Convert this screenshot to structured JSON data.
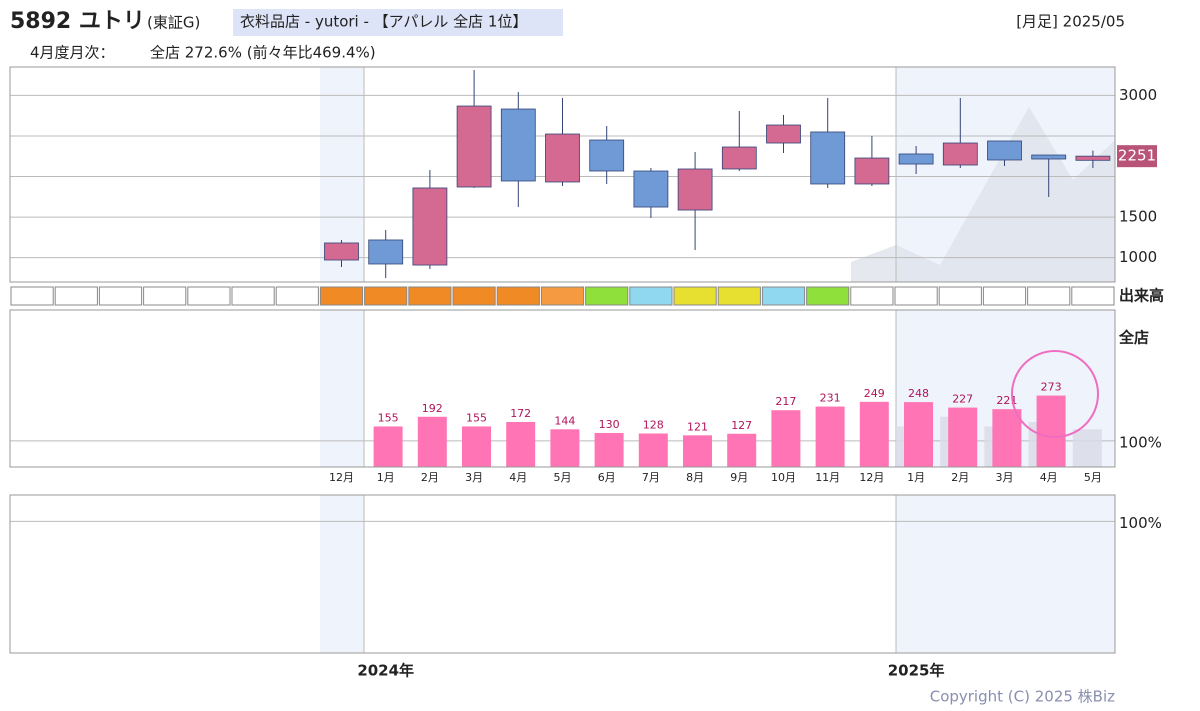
{
  "header": {
    "code_name": "5892 ユトリ",
    "market": "(東証G)",
    "sector": "衣料品店 - yutori - 【アパレル 全店 1位】",
    "period": "[月足] 2025/05",
    "monthly_label": "4月度月次：",
    "monthly_value": "全店 272.6% (前々年比469.4%)"
  },
  "chart_data": [
    {
      "type": "candlestick",
      "up_color": "#d46a92",
      "down_color": "#6f9ad6",
      "open": [
        971,
        1218,
        909,
        1871,
        2832,
        1933,
        2450,
        2068,
        1587,
        2093,
        2413,
        2549,
        1908,
        2278,
        2142,
        2438,
        2265,
        2200
      ],
      "high": [
        1218,
        1341,
        2080,
        3313,
        3042,
        2968,
        2623,
        2105,
        2302,
        2808,
        2758,
        2968,
        2499,
        2376,
        2968,
        2438,
        2265,
        2320
      ],
      "low": [
        885,
        749,
        860,
        1860,
        1624,
        1883,
        1908,
        1489,
        1094,
        2068,
        2290,
        1859,
        1883,
        2031,
        2105,
        2130,
        1748,
        2105
      ],
      "close": [
        1181,
        922,
        1859,
        2869,
        1945,
        2524,
        2068,
        1624,
        2093,
        2364,
        2635,
        1908,
        2228,
        2154,
        2413,
        2204,
        2216,
        2251
      ],
      "last_price": 2251,
      "ylim": [
        700,
        3350
      ],
      "yticks": [
        1000,
        1500,
        3000
      ],
      "ygrid": [
        1000,
        1500,
        2000,
        2500,
        3000
      ],
      "volume_label": "出来高",
      "volume_colors": [
        "#ef8a25",
        "#ef8a25",
        "#ef8a25",
        "#ef8a25",
        "#ef8a25",
        "#f59a40",
        "#8fe03a",
        "#8fd8ef",
        "#e8e030",
        "#e8e030",
        "#8fd8ef",
        "#8fe03a",
        "#ffffff",
        "#ffffff",
        "#ffffff",
        "#ffffff",
        "#ffffff",
        "#ffffff"
      ]
    },
    {
      "type": "bar",
      "title": "全店",
      "categories": [
        "12月",
        "1月",
        "2月",
        "3月",
        "4月",
        "5月",
        "6月",
        "7月",
        "8月",
        "9月",
        "10月",
        "11月",
        "12月",
        "1月",
        "2月",
        "3月",
        "4月",
        "5月"
      ],
      "series": [
        {
          "color": "#d9dbe6",
          "values": [
            null,
            null,
            null,
            null,
            null,
            null,
            null,
            null,
            null,
            null,
            null,
            null,
            null,
            155,
            192,
            155,
            172,
            144
          ]
        },
        {
          "color": "#ff74b4",
          "values": [
            null,
            155,
            192,
            155,
            172,
            144,
            130,
            128,
            121,
            127,
            217,
            231,
            249,
            248,
            227,
            221,
            273,
            null
          ]
        }
      ],
      "ylim": [
        0,
        600
      ],
      "yticks": [
        {
          "value": 100,
          "label": "100%"
        }
      ]
    },
    {
      "type": "line",
      "ylim": [
        0,
        120
      ],
      "yticks": [
        {
          "value": 100,
          "label": "100%"
        }
      ]
    }
  ],
  "year_labels": [
    "2024年",
    "2025年"
  ],
  "copyright": "Copyright (C) 2025 株Biz"
}
